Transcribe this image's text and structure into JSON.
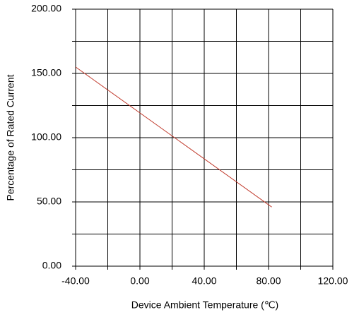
{
  "chart_data": {
    "type": "line",
    "x_label": "Device Ambient Temperature (℃)",
    "y_label": "Percentage of Rated Current",
    "xlim": [
      -40,
      120
    ],
    "ylim": [
      0,
      200
    ],
    "xticks": [
      {
        "value": -40,
        "label": "-40.00"
      },
      {
        "value": 0,
        "label": "0.00"
      },
      {
        "value": 40,
        "label": "40.00"
      },
      {
        "value": 80,
        "label": "80.00"
      },
      {
        "value": 120,
        "label": "120.00"
      }
    ],
    "xminor": [
      -20,
      20,
      60,
      100
    ],
    "yticks": [
      {
        "value": 0,
        "label": "0.00"
      },
      {
        "value": 50,
        "label": "50.00"
      },
      {
        "value": 100,
        "label": "100.00"
      },
      {
        "value": 150,
        "label": "150.00"
      },
      {
        "value": 200,
        "label": "200.00"
      }
    ],
    "yminor": [
      25,
      75,
      125,
      175
    ],
    "grid": true,
    "series": [
      {
        "color": "#c0392b",
        "x": [
          -40,
          82
        ],
        "values": [
          155,
          46
        ]
      }
    ]
  }
}
